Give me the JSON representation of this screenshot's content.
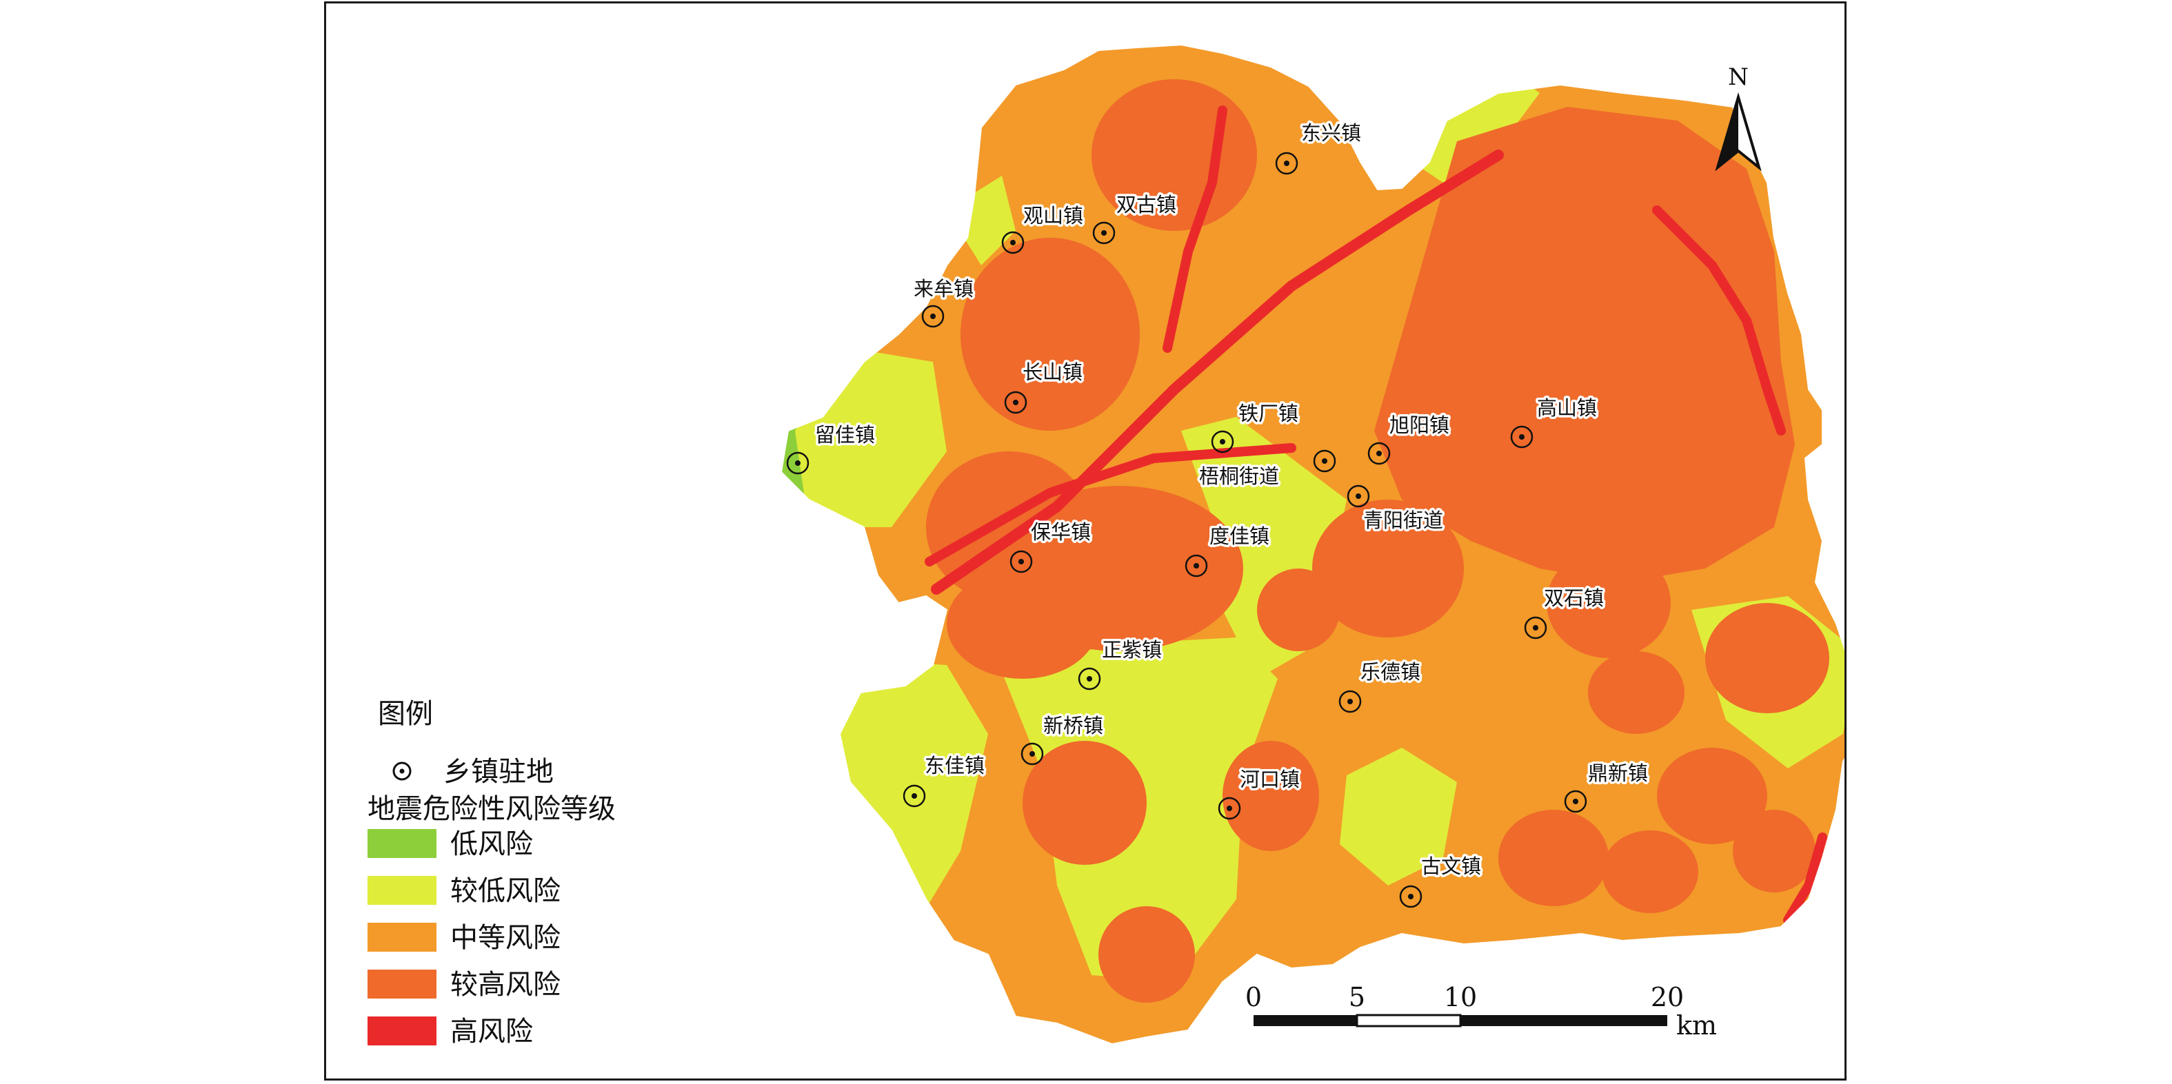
{
  "map": {
    "north_label": "N",
    "legend": {
      "title": "图例",
      "town_symbol_label": "乡镇驻地",
      "risk_heading": "地震危险性风险等级",
      "classes": [
        {
          "label": "低风险",
          "color": "#8dcf3a"
        },
        {
          "label": "较低风险",
          "color": "#e0ec3a"
        },
        {
          "label": "中等风险",
          "color": "#f39a2a"
        },
        {
          "label": "较高风险",
          "color": "#ef6a2b"
        },
        {
          "label": "高风险",
          "color": "#ea2a2a"
        }
      ]
    },
    "scale_bar": {
      "ticks": [
        "0",
        "5",
        "10",
        "20"
      ],
      "unit": "km"
    },
    "towns": [
      {
        "name": "东兴镇"
      },
      {
        "name": "观山镇"
      },
      {
        "name": "双古镇"
      },
      {
        "name": "来牟镇"
      },
      {
        "name": "长山镇"
      },
      {
        "name": "留佳镇"
      },
      {
        "name": "铁厂镇"
      },
      {
        "name": "梧桐街道"
      },
      {
        "name": "旭阳镇"
      },
      {
        "name": "青阳街道"
      },
      {
        "name": "高山镇"
      },
      {
        "name": "保华镇"
      },
      {
        "name": "度佳镇"
      },
      {
        "name": "双石镇"
      },
      {
        "name": "正紫镇"
      },
      {
        "name": "乐德镇"
      },
      {
        "name": "新桥镇"
      },
      {
        "name": "东佳镇"
      },
      {
        "name": "河口镇"
      },
      {
        "name": "鼎新镇"
      },
      {
        "name": "古文镇"
      }
    ]
  }
}
